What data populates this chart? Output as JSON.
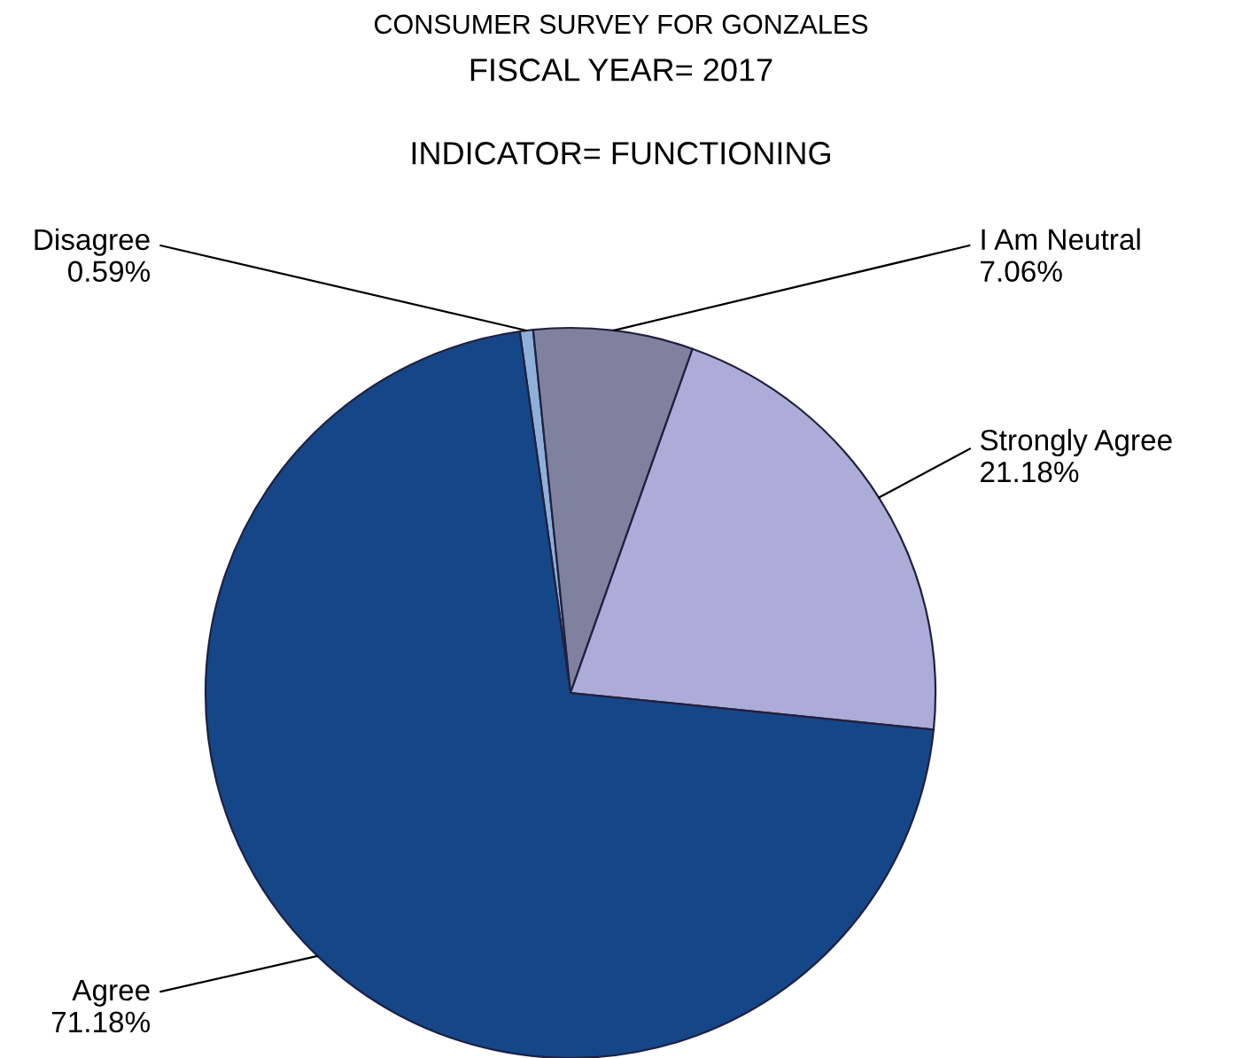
{
  "chart_data": {
    "type": "pie",
    "title": "CONSUMER SURVEY FOR GONZALES",
    "subtitle": "FISCAL YEAR= 2017",
    "annotations": [
      "INDICATOR= FUNCTIONING"
    ],
    "categories": [
      "Disagree",
      "I Am Neutral",
      "Strongly Agree",
      "Agree"
    ],
    "values": [
      0.59,
      7.06,
      21.18,
      71.18
    ],
    "value_labels": [
      "0.59%",
      "7.06%",
      "21.18%",
      "71.18%"
    ],
    "colors": [
      "#8fb0d8",
      "#7f819f",
      "#acacd9",
      "#154788"
    ]
  }
}
